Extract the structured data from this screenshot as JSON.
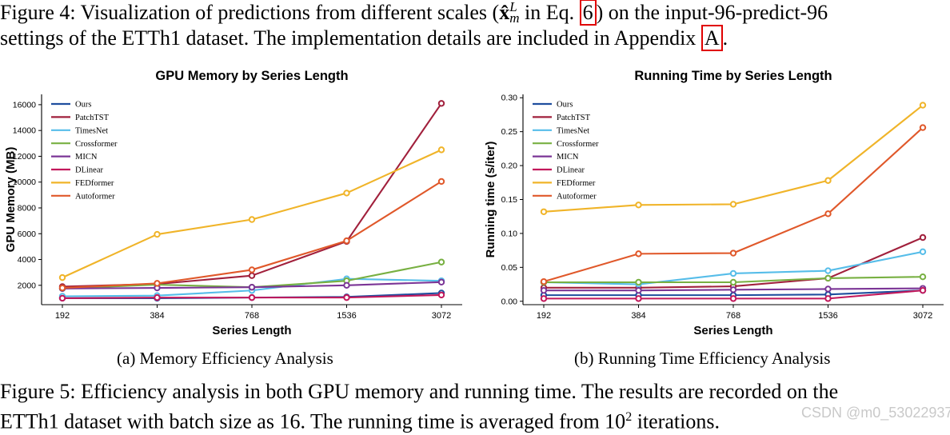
{
  "figure4_caption": {
    "part1": "Figure 4: Visualization of predictions from different scales (",
    "math": "x̂",
    "math_sup": "L",
    "math_sub": "m",
    "part2": " in Eq. ",
    "ref_eq": "6",
    "part3": ") on the input-96-predict-96",
    "line2": "settings of the ETTh1 dataset. The implementation details are included in Appendix ",
    "ref_appendix": "A",
    "end": "."
  },
  "figure5_caption": {
    "line1": "Figure 5: Efficiency analysis in both GPU memory and running time. The results are recorded on the",
    "line2a": "ETTh1 dataset with batch size as 16. The running time is averaged from 10",
    "line2_sup": "2",
    "line2b": " iterations."
  },
  "subcaption_a": "(a) Memory Efficiency Analysis",
  "subcaption_b": "(b) Running Time Efficiency Analysis",
  "watermark": "CSDN @m0_53022937",
  "chart_data": [
    {
      "type": "line",
      "title": "GPU Memory by Series Length",
      "xlabel": "Series Length",
      "ylabel": "GPU Memory (MB)",
      "categories": [
        "192",
        "384",
        "768",
        "1536",
        "3072"
      ],
      "yticks": [
        2000,
        4000,
        6000,
        8000,
        10000,
        12000,
        14000,
        16000
      ],
      "ytick_labels": [
        "2000",
        "4000",
        "6000",
        "8000",
        "10000",
        "12000",
        "14000",
        "16000"
      ],
      "ylim": [
        500,
        16800
      ],
      "legend": "top-left",
      "grid": false,
      "series": [
        {
          "name": "Ours",
          "color": "#1f4e9e",
          "values": [
            1000,
            1000,
            1050,
            1100,
            1400
          ]
        },
        {
          "name": "PatchTST",
          "color": "#a1203c",
          "values": [
            1900,
            2100,
            2750,
            5400,
            16100
          ]
        },
        {
          "name": "TimesNet",
          "color": "#56bde9",
          "values": [
            1150,
            1200,
            1600,
            2500,
            2350
          ]
        },
        {
          "name": "Crossformer",
          "color": "#78b042",
          "values": [
            1750,
            2050,
            1850,
            2350,
            3800
          ]
        },
        {
          "name": "MICN",
          "color": "#7b3596",
          "values": [
            1750,
            1800,
            1850,
            2000,
            2250
          ]
        },
        {
          "name": "DLinear",
          "color": "#c2185b",
          "values": [
            1000,
            1050,
            1050,
            1050,
            1250
          ]
        },
        {
          "name": "FEDformer",
          "color": "#f0b429",
          "values": [
            2600,
            5950,
            7100,
            9150,
            12500
          ]
        },
        {
          "name": "Autoformer",
          "color": "#e0582a",
          "values": [
            1800,
            2150,
            3200,
            5450,
            10050
          ]
        }
      ]
    },
    {
      "type": "line",
      "title": "Running Time by Series Length",
      "xlabel": "Series Length",
      "ylabel": "Running time (s/iter)",
      "categories": [
        "192",
        "384",
        "768",
        "1536",
        "3072"
      ],
      "yticks": [
        0.0,
        0.05,
        0.1,
        0.15,
        0.2,
        0.25,
        0.3
      ],
      "ytick_labels": [
        "0.00",
        "0.05",
        "0.10",
        "0.15",
        "0.20",
        "0.25",
        "0.30"
      ],
      "ylim": [
        -0.005,
        0.305
      ],
      "legend": "top-left",
      "grid": false,
      "series": [
        {
          "name": "Ours",
          "color": "#1f4e9e",
          "values": [
            0.009,
            0.009,
            0.009,
            0.01,
            0.016
          ]
        },
        {
          "name": "PatchTST",
          "color": "#a1203c",
          "values": [
            0.02,
            0.02,
            0.022,
            0.034,
            0.094
          ]
        },
        {
          "name": "TimesNet",
          "color": "#56bde9",
          "values": [
            0.028,
            0.025,
            0.041,
            0.045,
            0.073
          ]
        },
        {
          "name": "Crossformer",
          "color": "#78b042",
          "values": [
            0.028,
            0.028,
            0.028,
            0.034,
            0.036
          ]
        },
        {
          "name": "MICN",
          "color": "#7b3596",
          "values": [
            0.016,
            0.016,
            0.017,
            0.018,
            0.019
          ]
        },
        {
          "name": "DLinear",
          "color": "#c2185b",
          "values": [
            0.004,
            0.004,
            0.004,
            0.004,
            0.016
          ]
        },
        {
          "name": "FEDformer",
          "color": "#f0b429",
          "values": [
            0.132,
            0.142,
            0.143,
            0.178,
            0.289
          ]
        },
        {
          "name": "Autoformer",
          "color": "#e0582a",
          "values": [
            0.029,
            0.07,
            0.071,
            0.129,
            0.256
          ]
        }
      ]
    }
  ]
}
